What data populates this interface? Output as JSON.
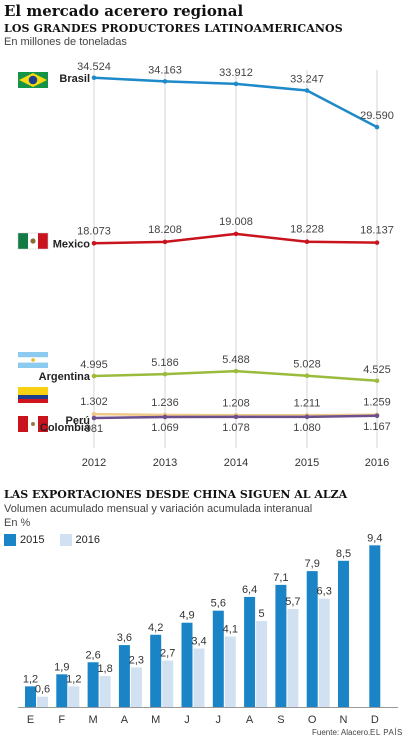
{
  "header": {
    "title": "El mercado acerero regional"
  },
  "chart_data": [
    {
      "type": "line",
      "title": "LOS GRANDES PRODUCTORES LATINOAMERICANOS",
      "subtitle": "En millones de toneladas",
      "x": [
        "2012",
        "2013",
        "2014",
        "2015",
        "2016"
      ],
      "grid": "vertical",
      "series": [
        {
          "name": "Brasil",
          "color": "#1f8ac9",
          "flag": "brazil-flag-icon",
          "values": [
            34.524,
            34.163,
            33.912,
            33.247,
            29.59
          ],
          "labels": [
            "34.524",
            "34.163",
            "33.912",
            "33.247",
            "29.590"
          ]
        },
        {
          "name": "Mexico",
          "color": "#c9141e",
          "flag": "mexico-flag-icon",
          "values": [
            18.073,
            18.208,
            19.008,
            18.228,
            18.137
          ],
          "labels": [
            "18.073",
            "18.208",
            "19.008",
            "18.228",
            "18.137"
          ]
        },
        {
          "name": "Argentina",
          "color": "#9bbb3c",
          "flag": "argentina-flag-icon",
          "values": [
            4.995,
            5.186,
            5.488,
            5.028,
            4.525
          ],
          "labels": [
            "4.995",
            "5.186",
            "5.488",
            "5.028",
            "4.525"
          ]
        },
        {
          "name": "Colombia",
          "color": "#f0c98a",
          "flag": "colombia-flag-icon",
          "values": [
            1.302,
            1.236,
            1.208,
            1.211,
            1.259
          ],
          "labels": [
            "1.302",
            "1.236",
            "1.208",
            "1.211",
            "1.259"
          ]
        },
        {
          "name": "Perú",
          "color": "#6b4f8f",
          "flag": "peru-flag-icon",
          "values": [
            0.981,
            1.069,
            1.078,
            1.08,
            1.167
          ],
          "labels": [
            "981",
            "1.069",
            "1.078",
            "1.080",
            "1.167"
          ]
        }
      ]
    },
    {
      "type": "bar",
      "title": "LAS EXPORTACIONES DESDE CHINA SIGUEN AL ALZA",
      "subtitle": "Volumen acumulado mensual y variación acumulada interanual",
      "unit": "En %",
      "categories": [
        "E",
        "F",
        "M",
        "A",
        "M",
        "J",
        "J",
        "A",
        "S",
        "O",
        "N",
        "D"
      ],
      "series": [
        {
          "name": "2015",
          "color": "#1a84c6",
          "values": [
            1.2,
            1.9,
            2.6,
            3.6,
            4.2,
            4.9,
            5.6,
            6.4,
            7.1,
            7.9,
            8.5,
            9.4
          ],
          "labels": [
            "1,2",
            "1,9",
            "2,6",
            "3,6",
            "4,2",
            "4,9",
            "5,6",
            "6,4",
            "7,1",
            "7,9",
            "8,5",
            "9,4"
          ]
        },
        {
          "name": "2016",
          "color": "#d2e1f1",
          "values": [
            0.6,
            1.2,
            1.8,
            2.3,
            2.7,
            3.4,
            4.1,
            5,
            5.7,
            6.3,
            null,
            null
          ],
          "labels": [
            "0,6",
            "1,2",
            "1,8",
            "2,3",
            "2,7",
            "3,4",
            "4,1",
            "5",
            "5,7",
            "6,3",
            "",
            ""
          ]
        }
      ]
    }
  ],
  "footer": {
    "source": "Fuente: Alacero.",
    "brand": "EL PAÍS"
  }
}
